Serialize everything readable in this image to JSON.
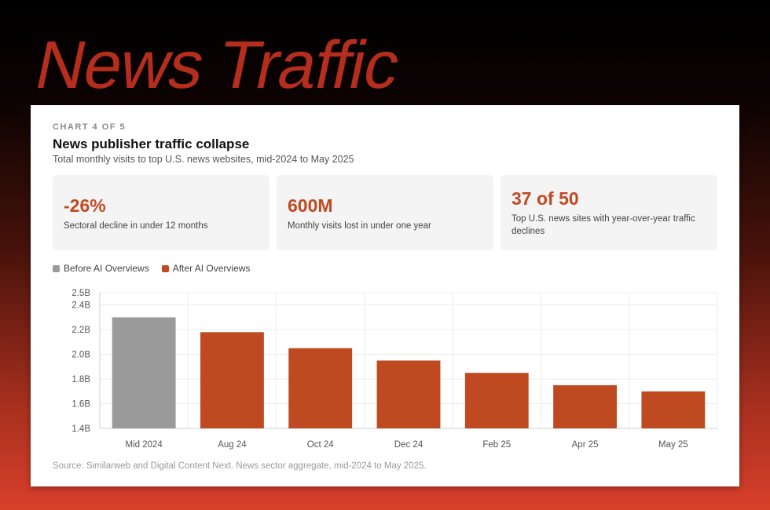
{
  "hero": {
    "title": "News Traffic"
  },
  "card": {
    "eyebrow": "CHART 4 OF 5",
    "title": "News publisher traffic collapse",
    "subtitle": "Total monthly visits to top U.S. news websites, mid-2024 to May 2025",
    "stats": [
      {
        "value": "-26%",
        "label": "Sectoral decline in under 12 months"
      },
      {
        "value": "600M",
        "label": "Monthly visits lost in under one year"
      },
      {
        "value": "37 of 50",
        "label": "Top U.S. news sites with year-over-year traffic declines"
      }
    ],
    "source": "Source: Similarweb and Digital Content Next. News sector aggregate, mid-2024 to May 2025."
  },
  "colors": {
    "before": "#9a9a9a",
    "after": "#bf4a22",
    "accent": "#bf4a22"
  },
  "chart_data": {
    "type": "bar",
    "categories": [
      "Mid 2024",
      "Aug 24",
      "Oct 24",
      "Dec 24",
      "Feb 25",
      "Apr 25",
      "May 25"
    ],
    "values": [
      2.3,
      2.18,
      2.05,
      1.95,
      1.85,
      1.75,
      1.7
    ],
    "groups": [
      "before",
      "after",
      "after",
      "after",
      "after",
      "after",
      "after"
    ],
    "legend": [
      {
        "key": "before",
        "label": "Before AI Overviews"
      },
      {
        "key": "after",
        "label": "After AI Overviews"
      }
    ],
    "legend_position": "top-left",
    "yticks": [
      {
        "value": 1.4,
        "label": "1.4B"
      },
      {
        "value": 1.6,
        "label": "1.6B"
      },
      {
        "value": 1.8,
        "label": "1.8B"
      },
      {
        "value": 2.0,
        "label": "2.0B"
      },
      {
        "value": 2.2,
        "label": "2.2B"
      },
      {
        "value": 2.4,
        "label": "2.4B"
      },
      {
        "value": 2.5,
        "label": "2.5B"
      }
    ],
    "ylim": [
      1.4,
      2.5
    ],
    "grid": true
  }
}
